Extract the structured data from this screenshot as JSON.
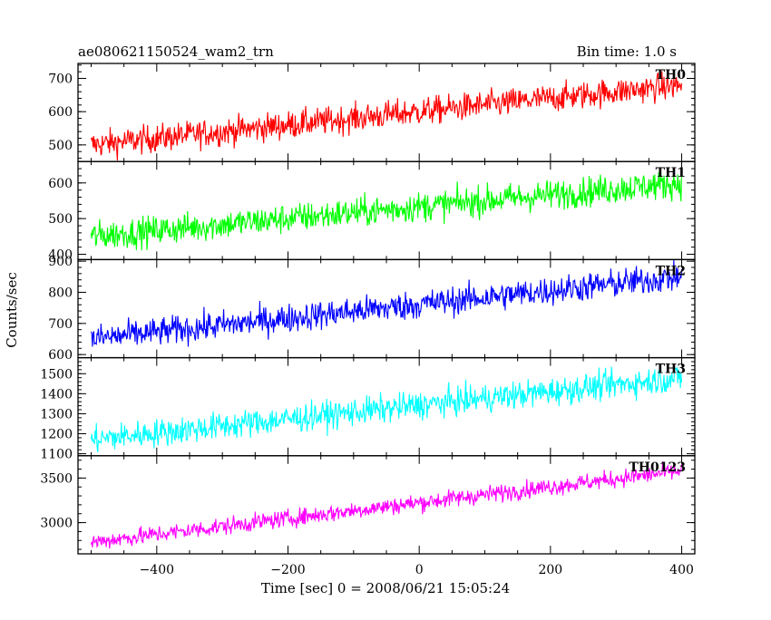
{
  "header": {
    "title": "ae080621150524_wam2_trn",
    "bin_time": "Bin time: 1.0 s"
  },
  "chart_data": {
    "type": "line",
    "title": "ae080621150524_wam2_trn",
    "subtitle": "Bin time: 1.0 s",
    "xlabel": "Time [sec] 0 = 2008/06/21 15:05:24",
    "ylabel": "Counts/sec",
    "xlim": [
      -520,
      420
    ],
    "x_range_of_data": [
      -500,
      400
    ],
    "x_step": 1,
    "x_ticks": [
      -400,
      -200,
      0,
      200,
      400
    ],
    "x_tick_labels": [
      "−400",
      "−200",
      "0",
      "200",
      "400"
    ],
    "grid": false,
    "panels": [
      {
        "name": "TH0",
        "color": "#ff0000",
        "ylim": [
          450,
          745
        ],
        "yticks": [
          500,
          600,
          700
        ],
        "ytick_labels": [
          "500",
          "600",
          "700"
        ],
        "trend_start": 500,
        "trend_end": 680,
        "noise": 30
      },
      {
        "name": "TH1",
        "color": "#00ff00",
        "ylim": [
          385,
          660
        ],
        "yticks": [
          400,
          500,
          600
        ],
        "ytick_labels": [
          "400",
          "500",
          "600"
        ],
        "trend_start": 450,
        "trend_end": 600,
        "noise": 30
      },
      {
        "name": "TH2",
        "color": "#0000ff",
        "ylim": [
          590,
          905
        ],
        "yticks": [
          600,
          700,
          800,
          900
        ],
        "ytick_labels": [
          "600",
          "700",
          "800",
          "900"
        ],
        "trend_start": 650,
        "trend_end": 850,
        "noise": 33
      },
      {
        "name": "TH3",
        "color": "#00ffff",
        "ylim": [
          1090,
          1580
        ],
        "yticks": [
          1100,
          1200,
          1300,
          1400,
          1500
        ],
        "ytick_labels": [
          "1100",
          "1200",
          "1300",
          "1400",
          "1500"
        ],
        "trend_start": 1170,
        "trend_end": 1480,
        "noise": 50
      },
      {
        "name": "TH0123",
        "color": "#ff00ff",
        "ylim": [
          2650,
          3750
        ],
        "yticks": [
          3000,
          3500
        ],
        "ytick_labels": [
          "3000",
          "3500"
        ],
        "trend_start": 2780,
        "trend_end": 3580,
        "noise": 70
      }
    ]
  }
}
